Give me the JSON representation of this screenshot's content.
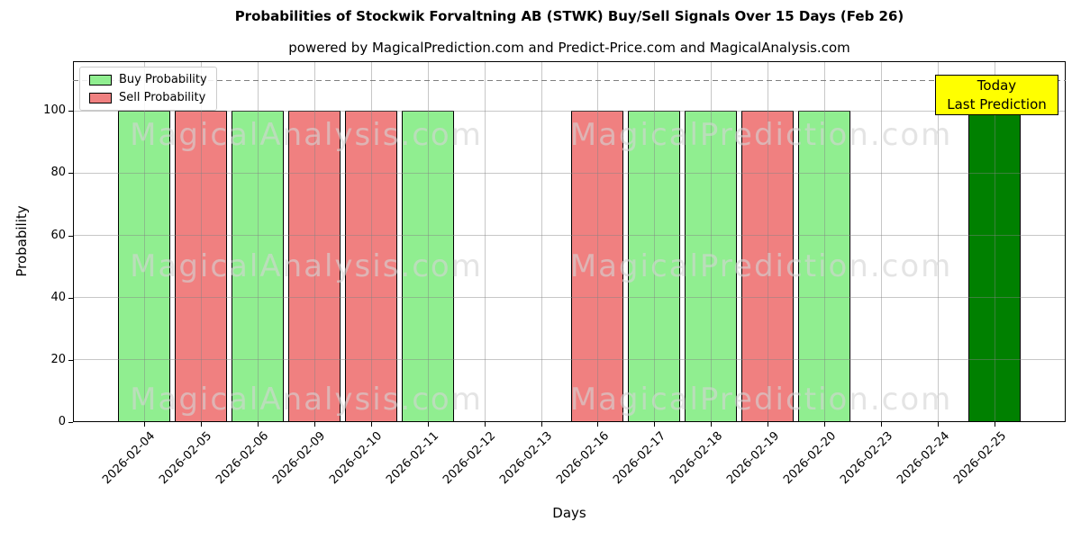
{
  "chart_data": {
    "type": "bar",
    "title": "Probabilities of Stockwik Forvaltning AB (STWK) Buy/Sell Signals Over 15 Days (Feb 26)",
    "subtitle": "powered by MagicalPrediction.com and Predict-Price.com and MagicalAnalysis.com",
    "xlabel": "Days",
    "ylabel": "Probability",
    "categories": [
      "2026-02-04",
      "2026-02-05",
      "2026-02-06",
      "2026-02-09",
      "2026-02-10",
      "2026-02-11",
      "2026-02-12",
      "2026-02-13",
      "2026-02-16",
      "2026-02-17",
      "2026-02-18",
      "2026-02-19",
      "2026-02-20",
      "2026-02-23",
      "2026-02-24",
      "2026-02-25"
    ],
    "series": [
      {
        "name": "Buy Probability",
        "color": "#90EE90",
        "values": [
          100,
          0,
          100,
          0,
          0,
          100,
          0,
          0,
          0,
          100,
          100,
          0,
          100,
          0,
          0,
          0
        ]
      },
      {
        "name": "Sell Probability",
        "color": "#F08080",
        "values": [
          0,
          100,
          0,
          100,
          100,
          0,
          0,
          0,
          100,
          0,
          0,
          100,
          0,
          0,
          0,
          0
        ]
      },
      {
        "name": "Last Prediction",
        "color": "#008000",
        "values": [
          0,
          0,
          0,
          0,
          0,
          0,
          0,
          0,
          0,
          0,
          0,
          0,
          0,
          0,
          0,
          100
        ]
      }
    ],
    "ylim": [
      0,
      116
    ],
    "yticks": [
      0,
      20,
      40,
      60,
      80,
      100
    ],
    "dashed_line_y": 110,
    "grid": true,
    "legend_position": "upper left"
  },
  "legend": {
    "items": [
      {
        "label": "Buy Probability",
        "color": "#90EE90"
      },
      {
        "label": "Sell Probability",
        "color": "#F08080"
      }
    ]
  },
  "annotation": {
    "lines": [
      "Today",
      "Last Prediction"
    ],
    "bg": "#FFFF00"
  },
  "watermarks": {
    "left": "MagicalAnalysis.com",
    "right": "MagicalPrediction.com"
  }
}
